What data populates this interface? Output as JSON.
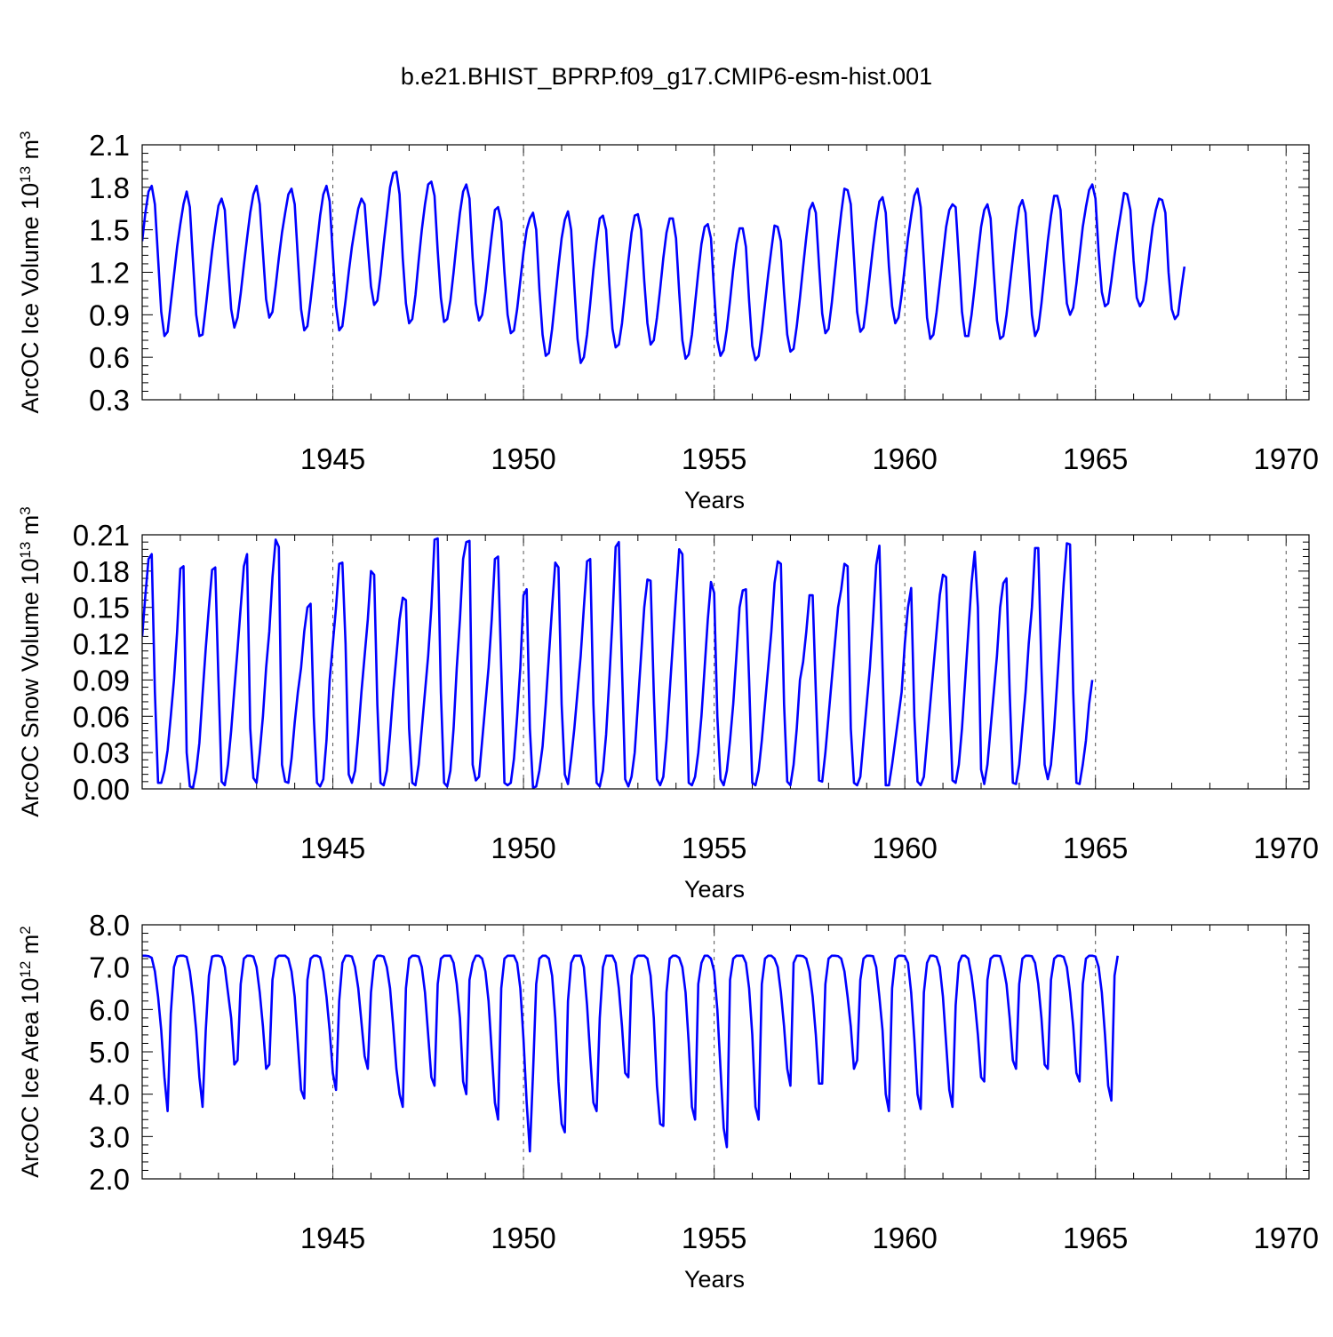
{
  "figure_title": "b.e21.BHIST_BPRP.f09_g17.CMIP6-esm-hist.001",
  "colors": {
    "series": "#0000ff",
    "axes": "#000000",
    "gridline": "#555555",
    "background": "#ffffff"
  },
  "chart_data": [
    {
      "type": "line",
      "panel": "ice-volume",
      "title": "",
      "xlabel": "Years",
      "ylabel": {
        "text": "ArcOC Ice Volume 10",
        "sup": "13",
        "unit": " m",
        "unit_sup": "3"
      },
      "xlim": [
        1940.0,
        1970.6
      ],
      "ylim": [
        0.3,
        2.1
      ],
      "x_ticks": [
        "1945",
        "1950",
        "1955",
        "1960",
        "1965",
        "1970"
      ],
      "y_ticks": [
        "0.3",
        "0.6",
        "0.9",
        "1.2",
        "1.5",
        "1.8",
        "2.1"
      ],
      "series": [
        {
          "name": "ArcOC Ice Volume",
          "x_start": 1940.0,
          "x_step": 0.0833333,
          "values": [
            1.42,
            1.62,
            1.77,
            1.81,
            1.68,
            1.3,
            0.92,
            0.75,
            0.78,
            0.98,
            1.18,
            1.38,
            1.54,
            1.68,
            1.77,
            1.66,
            1.27,
            0.9,
            0.75,
            0.76,
            0.95,
            1.15,
            1.35,
            1.52,
            1.67,
            1.72,
            1.64,
            1.27,
            0.94,
            0.81,
            0.88,
            1.05,
            1.25,
            1.44,
            1.62,
            1.75,
            1.81,
            1.68,
            1.34,
            1.01,
            0.88,
            0.92,
            1.1,
            1.3,
            1.48,
            1.62,
            1.75,
            1.79,
            1.68,
            1.3,
            0.94,
            0.79,
            0.82,
            1.0,
            1.2,
            1.4,
            1.6,
            1.75,
            1.81,
            1.7,
            1.32,
            0.96,
            0.79,
            0.82,
            1.0,
            1.2,
            1.38,
            1.52,
            1.65,
            1.72,
            1.68,
            1.38,
            1.1,
            0.97,
            1.0,
            1.18,
            1.4,
            1.6,
            1.8,
            1.9,
            1.91,
            1.75,
            1.3,
            0.98,
            0.84,
            0.87,
            1.04,
            1.28,
            1.5,
            1.68,
            1.82,
            1.84,
            1.74,
            1.35,
            1.02,
            0.85,
            0.87,
            1.0,
            1.2,
            1.42,
            1.62,
            1.77,
            1.82,
            1.72,
            1.3,
            0.98,
            0.86,
            0.9,
            1.06,
            1.26,
            1.46,
            1.64,
            1.66,
            1.56,
            1.2,
            0.9,
            0.77,
            0.79,
            0.94,
            1.14,
            1.34,
            1.5,
            1.58,
            1.62,
            1.5,
            1.08,
            0.76,
            0.61,
            0.63,
            0.8,
            1.02,
            1.24,
            1.44,
            1.57,
            1.63,
            1.5,
            1.1,
            0.73,
            0.56,
            0.6,
            0.76,
            0.98,
            1.22,
            1.42,
            1.58,
            1.6,
            1.5,
            1.12,
            0.8,
            0.67,
            0.69,
            0.84,
            1.06,
            1.28,
            1.48,
            1.6,
            1.61,
            1.5,
            1.14,
            0.84,
            0.69,
            0.72,
            0.88,
            1.08,
            1.3,
            1.48,
            1.58,
            1.58,
            1.44,
            1.06,
            0.72,
            0.59,
            0.62,
            0.76,
            0.98,
            1.2,
            1.4,
            1.52,
            1.54,
            1.44,
            1.06,
            0.72,
            0.61,
            0.65,
            0.8,
            1.0,
            1.22,
            1.4,
            1.51,
            1.51,
            1.38,
            1.0,
            0.68,
            0.58,
            0.61,
            0.78,
            0.98,
            1.18,
            1.36,
            1.53,
            1.52,
            1.42,
            1.06,
            0.76,
            0.64,
            0.66,
            0.82,
            1.02,
            1.24,
            1.45,
            1.64,
            1.69,
            1.62,
            1.25,
            0.91,
            0.77,
            0.8,
            0.98,
            1.2,
            1.42,
            1.62,
            1.79,
            1.78,
            1.68,
            1.3,
            0.92,
            0.78,
            0.81,
            0.98,
            1.18,
            1.38,
            1.56,
            1.7,
            1.73,
            1.62,
            1.24,
            0.96,
            0.84,
            0.88,
            1.04,
            1.24,
            1.44,
            1.6,
            1.74,
            1.79,
            1.66,
            1.28,
            0.88,
            0.73,
            0.76,
            0.92,
            1.12,
            1.32,
            1.52,
            1.64,
            1.68,
            1.66,
            1.3,
            0.92,
            0.75,
            0.75,
            0.9,
            1.1,
            1.32,
            1.52,
            1.64,
            1.68,
            1.58,
            1.2,
            0.86,
            0.73,
            0.75,
            0.9,
            1.1,
            1.3,
            1.5,
            1.66,
            1.71,
            1.62,
            1.26,
            0.9,
            0.75,
            0.8,
            0.98,
            1.2,
            1.42,
            1.6,
            1.74,
            1.74,
            1.64,
            1.28,
            0.98,
            0.9,
            0.95,
            1.12,
            1.32,
            1.52,
            1.66,
            1.78,
            1.82,
            1.72,
            1.34,
            1.06,
            0.96,
            0.98,
            1.14,
            1.32,
            1.48,
            1.62,
            1.76,
            1.75,
            1.64,
            1.28,
            1.02,
            0.96,
            1.0,
            1.14,
            1.34,
            1.52,
            1.64,
            1.72,
            1.71,
            1.62,
            1.2,
            0.94,
            0.87,
            0.9,
            1.08,
            1.24
          ]
        }
      ]
    },
    {
      "type": "line",
      "panel": "snow-volume",
      "title": "",
      "xlabel": "Years",
      "ylabel": {
        "text": "ArcOC Snow Volume 10",
        "sup": "13",
        "unit": " m",
        "unit_sup": "3"
      },
      "xlim": [
        1940.0,
        1970.6
      ],
      "ylim": [
        0.0,
        0.21
      ],
      "x_ticks": [
        "1945",
        "1950",
        "1955",
        "1960",
        "1965",
        "1970"
      ],
      "y_ticks": [
        "0.00",
        "0.03",
        "0.06",
        "0.09",
        "0.12",
        "0.15",
        "0.18",
        "0.21"
      ],
      "series": [
        {
          "name": "ArcOC Snow Volume",
          "x_start": 1940.0,
          "x_step": 0.0833333,
          "values": [
            0.126,
            0.16,
            0.19,
            0.194,
            0.08,
            0.005,
            0.005,
            0.015,
            0.032,
            0.06,
            0.09,
            0.13,
            0.182,
            0.184,
            0.03,
            0.002,
            0.001,
            0.015,
            0.038,
            0.078,
            0.116,
            0.15,
            0.181,
            0.183,
            0.09,
            0.006,
            0.003,
            0.02,
            0.048,
            0.082,
            0.115,
            0.15,
            0.184,
            0.194,
            0.05,
            0.009,
            0.005,
            0.03,
            0.06,
            0.1,
            0.13,
            0.175,
            0.206,
            0.2,
            0.02,
            0.006,
            0.005,
            0.025,
            0.055,
            0.08,
            0.1,
            0.13,
            0.15,
            0.153,
            0.06,
            0.005,
            0.002,
            0.008,
            0.04,
            0.09,
            0.12,
            0.15,
            0.186,
            0.187,
            0.12,
            0.012,
            0.005,
            0.015,
            0.045,
            0.08,
            0.11,
            0.14,
            0.18,
            0.177,
            0.07,
            0.005,
            0.003,
            0.015,
            0.045,
            0.08,
            0.11,
            0.14,
            0.158,
            0.156,
            0.05,
            0.005,
            0.003,
            0.02,
            0.05,
            0.08,
            0.11,
            0.15,
            0.206,
            0.207,
            0.08,
            0.005,
            0.002,
            0.015,
            0.05,
            0.1,
            0.14,
            0.19,
            0.204,
            0.205,
            0.02,
            0.007,
            0.01,
            0.04,
            0.07,
            0.1,
            0.14,
            0.19,
            0.192,
            0.1,
            0.005,
            0.003,
            0.005,
            0.025,
            0.06,
            0.1,
            0.16,
            0.165,
            0.05,
            0.001,
            0.002,
            0.015,
            0.035,
            0.07,
            0.11,
            0.15,
            0.187,
            0.183,
            0.07,
            0.012,
            0.004,
            0.025,
            0.05,
            0.08,
            0.11,
            0.15,
            0.188,
            0.19,
            0.07,
            0.005,
            0.002,
            0.015,
            0.045,
            0.09,
            0.14,
            0.2,
            0.204,
            0.1,
            0.008,
            0.002,
            0.01,
            0.03,
            0.07,
            0.11,
            0.15,
            0.173,
            0.172,
            0.08,
            0.008,
            0.003,
            0.01,
            0.04,
            0.08,
            0.12,
            0.16,
            0.198,
            0.194,
            0.1,
            0.005,
            0.003,
            0.01,
            0.03,
            0.06,
            0.1,
            0.14,
            0.171,
            0.162,
            0.06,
            0.008,
            0.003,
            0.015,
            0.04,
            0.07,
            0.11,
            0.15,
            0.164,
            0.165,
            0.09,
            0.005,
            0.003,
            0.015,
            0.04,
            0.07,
            0.1,
            0.13,
            0.17,
            0.188,
            0.186,
            0.07,
            0.006,
            0.003,
            0.02,
            0.05,
            0.09,
            0.105,
            0.13,
            0.16,
            0.16,
            0.08,
            0.007,
            0.006,
            0.03,
            0.06,
            0.09,
            0.12,
            0.15,
            0.165,
            0.186,
            0.184,
            0.05,
            0.005,
            0.003,
            0.01,
            0.04,
            0.07,
            0.1,
            0.14,
            0.185,
            0.201,
            0.1,
            0.003,
            0.003,
            0.02,
            0.04,
            0.06,
            0.08,
            0.12,
            0.15,
            0.166,
            0.06,
            0.006,
            0.003,
            0.01,
            0.04,
            0.07,
            0.1,
            0.13,
            0.16,
            0.177,
            0.175,
            0.08,
            0.007,
            0.005,
            0.02,
            0.05,
            0.09,
            0.13,
            0.17,
            0.196,
            0.15,
            0.016,
            0.004,
            0.02,
            0.05,
            0.08,
            0.11,
            0.15,
            0.17,
            0.174,
            0.08,
            0.005,
            0.004,
            0.02,
            0.05,
            0.08,
            0.12,
            0.15,
            0.199,
            0.199,
            0.1,
            0.02,
            0.008,
            0.02,
            0.05,
            0.09,
            0.13,
            0.17,
            0.203,
            0.202,
            0.08,
            0.005,
            0.004,
            0.02,
            0.04,
            0.07,
            0.09
          ]
        }
      ]
    },
    {
      "type": "line",
      "panel": "ice-area",
      "title": "",
      "xlabel": "Years",
      "ylabel": {
        "text": "ArcOC Ice Area 10",
        "sup": "12",
        "unit": " m",
        "unit_sup": "2"
      },
      "xlim": [
        1940.0,
        1970.6
      ],
      "ylim": [
        2.0,
        8.0
      ],
      "x_ticks": [
        "1945",
        "1950",
        "1955",
        "1960",
        "1965",
        "1970"
      ],
      "y_ticks": [
        "2.0",
        "3.0",
        "4.0",
        "5.0",
        "6.0",
        "7.0",
        "8.0"
      ],
      "series": [
        {
          "name": "ArcOC Ice Area",
          "x_start": 1940.0,
          "x_step": 0.0833333,
          "values": [
            7.27,
            7.27,
            7.26,
            7.22,
            6.9,
            6.3,
            5.5,
            4.4,
            3.6,
            5.9,
            7.0,
            7.25,
            7.27,
            7.27,
            7.24,
            6.9,
            6.3,
            5.5,
            4.4,
            3.7,
            5.5,
            6.8,
            7.25,
            7.27,
            7.27,
            7.24,
            7.0,
            6.4,
            5.8,
            4.7,
            4.8,
            6.6,
            7.2,
            7.27,
            7.27,
            7.25,
            7.0,
            6.4,
            5.6,
            4.6,
            4.7,
            6.7,
            7.2,
            7.27,
            7.27,
            7.27,
            7.2,
            6.9,
            6.3,
            5.2,
            4.1,
            3.9,
            6.7,
            7.2,
            7.27,
            7.27,
            7.23,
            6.9,
            6.3,
            5.5,
            4.5,
            4.1,
            6.2,
            7.1,
            7.27,
            7.27,
            7.25,
            7.0,
            6.5,
            5.7,
            4.9,
            4.6,
            6.4,
            7.15,
            7.27,
            7.27,
            7.25,
            7.0,
            6.5,
            5.6,
            4.6,
            4.0,
            3.7,
            6.5,
            7.2,
            7.27,
            7.27,
            7.25,
            7.0,
            6.4,
            5.4,
            4.4,
            4.2,
            6.6,
            7.2,
            7.27,
            7.27,
            7.27,
            7.1,
            6.6,
            5.8,
            4.3,
            4.0,
            6.7,
            7.1,
            7.27,
            7.27,
            7.2,
            6.9,
            6.2,
            5.0,
            3.8,
            3.4,
            6.5,
            7.2,
            7.27,
            7.27,
            7.27,
            7.1,
            6.5,
            5.3,
            3.8,
            2.65,
            4.5,
            6.6,
            7.2,
            7.27,
            7.27,
            7.2,
            6.8,
            5.8,
            4.3,
            3.3,
            3.1,
            6.2,
            7.1,
            7.27,
            7.27,
            7.27,
            7.0,
            6.1,
            4.9,
            3.8,
            3.6,
            5.8,
            7.0,
            7.27,
            7.27,
            7.27,
            7.1,
            6.5,
            5.6,
            4.5,
            4.4,
            6.8,
            7.2,
            7.27,
            7.27,
            7.27,
            7.2,
            6.8,
            5.8,
            4.2,
            3.3,
            3.25,
            6.4,
            7.2,
            7.27,
            7.27,
            7.22,
            7.0,
            6.4,
            5.2,
            3.7,
            3.4,
            6.6,
            7.1,
            7.27,
            7.27,
            7.2,
            6.9,
            6.0,
            4.6,
            3.2,
            2.75,
            6.7,
            7.2,
            7.27,
            7.27,
            7.27,
            7.1,
            6.5,
            5.4,
            3.7,
            3.4,
            6.6,
            7.2,
            7.27,
            7.27,
            7.2,
            7.0,
            6.4,
            5.6,
            4.6,
            4.2,
            7.1,
            7.27,
            7.27,
            7.26,
            7.2,
            6.9,
            6.3,
            5.4,
            4.25,
            4.25,
            6.6,
            7.2,
            7.27,
            7.27,
            7.26,
            7.2,
            6.9,
            6.3,
            5.6,
            4.6,
            4.8,
            6.7,
            7.2,
            7.27,
            7.27,
            7.26,
            7.0,
            6.3,
            5.5,
            4.0,
            3.6,
            6.5,
            7.2,
            7.27,
            7.27,
            7.26,
            7.1,
            6.4,
            5.3,
            4.0,
            3.65,
            6.4,
            7.1,
            7.27,
            7.27,
            7.24,
            7.0,
            6.3,
            5.2,
            4.1,
            3.7,
            6.1,
            7.1,
            7.27,
            7.27,
            7.2,
            6.8,
            6.2,
            5.4,
            4.4,
            4.3,
            6.7,
            7.2,
            7.27,
            7.27,
            7.26,
            7.0,
            6.6,
            5.8,
            4.8,
            4.6,
            6.6,
            7.2,
            7.27,
            7.27,
            7.26,
            7.1,
            6.6,
            5.8,
            4.7,
            4.6,
            6.7,
            7.2,
            7.27,
            7.27,
            7.24,
            7.0,
            6.4,
            5.6,
            4.5,
            4.3,
            6.6,
            7.2,
            7.27,
            7.27,
            7.25,
            7.0,
            6.4,
            5.4,
            4.2,
            3.85,
            6.8,
            7.27
          ]
        }
      ]
    }
  ]
}
